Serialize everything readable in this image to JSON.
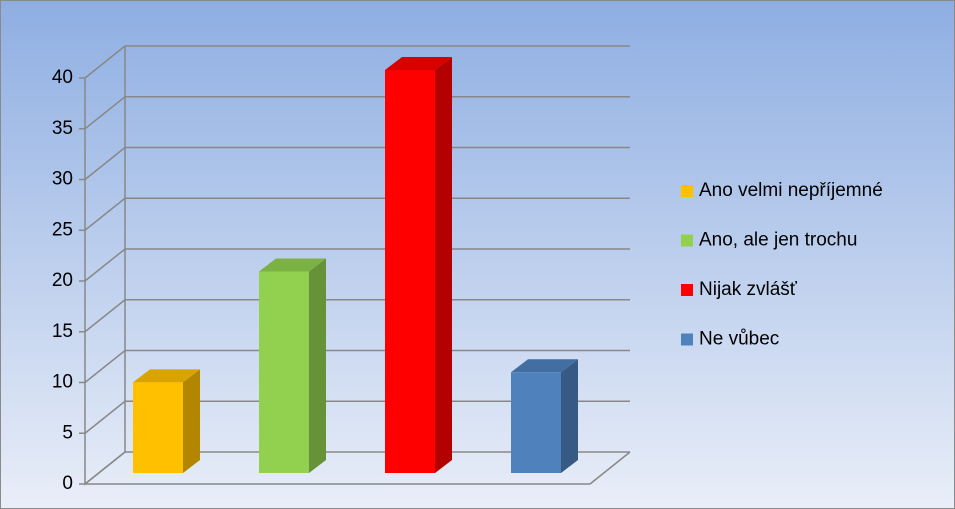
{
  "chart_data": {
    "type": "bar",
    "categories": [
      null
    ],
    "series": [
      {
        "name": "Ano velmi nepříjemné",
        "color": "#ffc000",
        "values": [
          9
        ]
      },
      {
        "name": "Ano, ale jen trochu",
        "color": "#92d050",
        "values": [
          20
        ]
      },
      {
        "name": "Nijak zvlášť",
        "color": "#ff0000",
        "values": [
          40
        ]
      },
      {
        "name": "Ne vůbec",
        "color": "#4f81bd",
        "values": [
          10
        ]
      }
    ],
    "ylim": [
      0,
      40
    ],
    "yticks": [
      0,
      5,
      10,
      15,
      20,
      25,
      30,
      35,
      40
    ],
    "grid": true,
    "legend": "right"
  }
}
